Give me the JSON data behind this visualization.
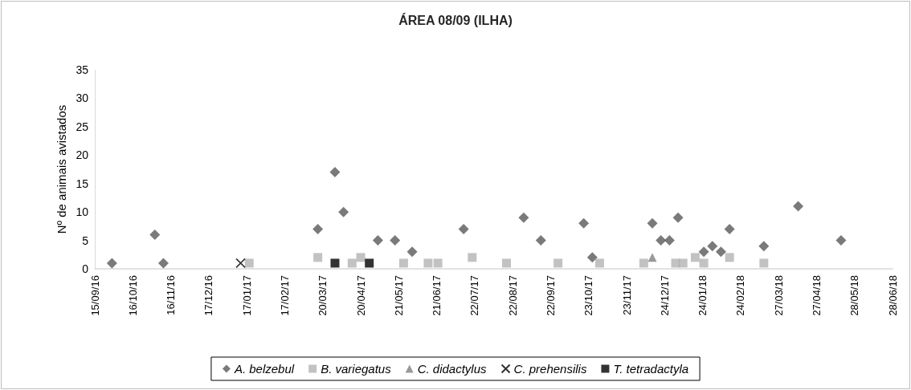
{
  "chart_data": {
    "type": "scatter",
    "title": "ÁREA 08/09 (ILHA)",
    "ylabel": "Nº de animais avistados",
    "xlim": [
      "2016-09-15",
      "2018-06-28"
    ],
    "xticks": [
      {
        "value": "2016-09-15",
        "label": "15/09/16"
      },
      {
        "value": "2016-10-16",
        "label": "16/10/16"
      },
      {
        "value": "2016-11-16",
        "label": "16/11/16"
      },
      {
        "value": "2016-12-17",
        "label": "17/12/16"
      },
      {
        "value": "2017-01-17",
        "label": "17/01/17"
      },
      {
        "value": "2017-02-17",
        "label": "17/02/17"
      },
      {
        "value": "2017-03-20",
        "label": "20/03/17"
      },
      {
        "value": "2017-04-20",
        "label": "20/04/17"
      },
      {
        "value": "2017-05-21",
        "label": "21/05/17"
      },
      {
        "value": "2017-06-21",
        "label": "21/06/17"
      },
      {
        "value": "2017-07-22",
        "label": "22/07/17"
      },
      {
        "value": "2017-08-22",
        "label": "22/08/17"
      },
      {
        "value": "2017-09-22",
        "label": "22/09/17"
      },
      {
        "value": "2017-10-23",
        "label": "23/10/17"
      },
      {
        "value": "2017-11-23",
        "label": "23/11/17"
      },
      {
        "value": "2017-12-24",
        "label": "24/12/17"
      },
      {
        "value": "2018-01-24",
        "label": "24/01/18"
      },
      {
        "value": "2018-02-24",
        "label": "24/02/18"
      },
      {
        "value": "2018-03-27",
        "label": "27/03/18"
      },
      {
        "value": "2018-04-27",
        "label": "27/04/18"
      },
      {
        "value": "2018-05-28",
        "label": "28/05/18"
      },
      {
        "value": "2018-06-28",
        "label": "28/06/18"
      }
    ],
    "ylim": [
      0,
      35
    ],
    "yticks": [
      0,
      5,
      10,
      15,
      20,
      25,
      30,
      35
    ],
    "grid": false,
    "legend": "bottom",
    "series": [
      {
        "name": "A. belzebul",
        "color": "#595959",
        "marker": "diamond",
        "x": [
          "2016-09-29",
          "2016-11-03",
          "2016-11-10",
          "2017-03-16",
          "2017-03-30",
          "2017-04-06",
          "2017-05-04",
          "2017-05-18",
          "2017-06-01",
          "2017-07-13",
          "2017-08-31",
          "2017-09-14",
          "2017-10-19",
          "2017-10-26",
          "2017-12-14",
          "2017-12-21",
          "2017-12-28",
          "2018-01-04",
          "2018-01-25",
          "2018-02-01",
          "2018-02-08",
          "2018-02-15",
          "2018-03-15",
          "2018-04-12",
          "2018-05-17"
        ],
        "values": [
          1,
          6,
          1,
          7,
          17,
          10,
          5,
          5,
          3,
          7,
          9,
          5,
          8,
          2,
          8,
          5,
          5,
          9,
          3,
          4,
          3,
          7,
          4,
          11,
          5
        ]
      },
      {
        "name": "B. variegatus",
        "color": "#b3b3b3",
        "marker": "square",
        "x": [
          "2017-01-19",
          "2017-03-16",
          "2017-04-13",
          "2017-04-20",
          "2017-05-25",
          "2017-06-14",
          "2017-06-22",
          "2017-07-20",
          "2017-08-17",
          "2017-09-28",
          "2017-11-01",
          "2017-12-07",
          "2018-01-02",
          "2018-01-08",
          "2018-01-18",
          "2018-01-25",
          "2018-02-15",
          "2018-03-15"
        ],
        "values": [
          1,
          2,
          1,
          2,
          1,
          1,
          1,
          2,
          1,
          1,
          1,
          1,
          1,
          1,
          2,
          1,
          2,
          1
        ]
      },
      {
        "name": "C. didactylus",
        "color": "#808080",
        "marker": "triangle",
        "x": [
          "2017-12-14"
        ],
        "values": [
          2
        ]
      },
      {
        "name": "C. prehensilis",
        "color": "#000000",
        "marker": "cross",
        "x": [
          "2017-01-12"
        ],
        "values": [
          1
        ]
      },
      {
        "name": "T. tetradactyla",
        "color": "#000000",
        "marker": "square",
        "x": [
          "2017-03-30",
          "2017-04-27"
        ],
        "values": [
          1,
          1
        ]
      }
    ]
  }
}
